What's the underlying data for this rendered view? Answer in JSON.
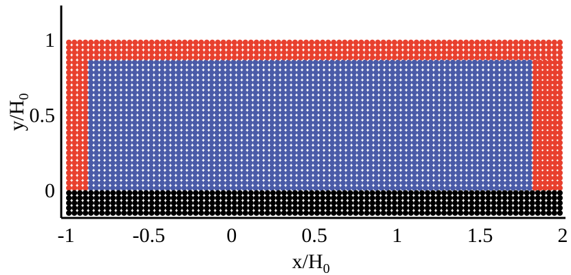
{
  "chart_data": {
    "type": "scatter",
    "title": "",
    "xlabel": {
      "base": "x/H",
      "sub": "0"
    },
    "ylabel": {
      "base": "y/H",
      "sub": "0"
    },
    "xlim": [
      -1,
      2
    ],
    "ylim": [
      -0.2,
      1.2
    ],
    "xticks": [
      -1,
      -0.5,
      0,
      0.5,
      1,
      1.5,
      2
    ],
    "xtick_labels": [
      "-1",
      "-0.5",
      "0",
      "0.5",
      "1",
      "1.5",
      "2"
    ],
    "yticks": [
      0,
      0.5,
      1
    ],
    "ytick_labels": [
      "0",
      "0.5",
      "1"
    ],
    "grid": false,
    "legend": "none",
    "particle_spacing": 0.0333,
    "series": [
      {
        "role": "fluid-interior",
        "color": "#4a5ba8",
        "x_range": [
          -0.85,
          1.8
        ],
        "y_range": [
          0.0167,
          0.85
        ]
      },
      {
        "role": "moving-wall",
        "color": "#e8402e",
        "regions": [
          {
            "x_range": [
              -0.983,
              1.983
            ],
            "y_range": [
              0.883,
              0.983
            ]
          },
          {
            "x_range": [
              -0.983,
              -0.883
            ],
            "y_range": [
              0.0167,
              0.85
            ]
          },
          {
            "x_range": [
              1.833,
              1.983
            ],
            "y_range": [
              0.0167,
              0.85
            ]
          }
        ]
      },
      {
        "role": "fixed-bottom-wall",
        "color": "#000000",
        "x_range": [
          -0.983,
          1.983
        ],
        "y_range": [
          -0.15,
          -0.0167
        ]
      }
    ]
  }
}
